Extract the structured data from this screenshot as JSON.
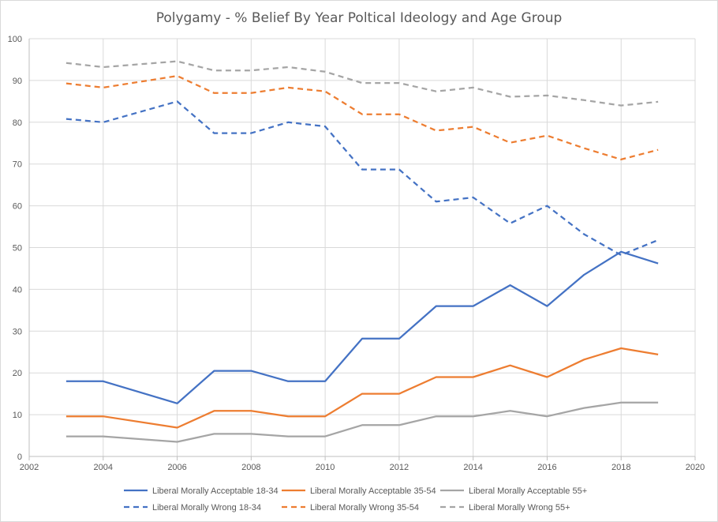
{
  "chart_data": {
    "type": "line",
    "title": "Polygamy - % Belief By Year Poltical Ideology and Age Group",
    "xlabel": "",
    "ylabel": "",
    "xlim": [
      2002,
      2020
    ],
    "ylim": [
      0,
      100
    ],
    "x_ticks": [
      2002,
      2004,
      2006,
      2008,
      2010,
      2012,
      2014,
      2016,
      2018,
      2020
    ],
    "y_ticks": [
      0,
      10,
      20,
      30,
      40,
      50,
      60,
      70,
      80,
      90,
      100
    ],
    "grid": true,
    "legend_position": "bottom",
    "x": [
      2003,
      2004,
      2006,
      2007,
      2008,
      2009,
      2010,
      2011,
      2012,
      2013,
      2014,
      2015,
      2016,
      2017,
      2018,
      2019
    ],
    "series": [
      {
        "name": "Liberal Morally Acceptable 18-34",
        "color": "#4472C4",
        "dash": "solid",
        "values": [
          18,
          18,
          12.7,
          20.5,
          20.5,
          18,
          18,
          28.2,
          28.2,
          36,
          36,
          41,
          36,
          43.5,
          49,
          46.2
        ]
      },
      {
        "name": "Liberal Morally Acceptable 35-54",
        "color": "#ED7D31",
        "dash": "solid",
        "values": [
          9.6,
          9.6,
          6.9,
          10.9,
          10.9,
          9.6,
          9.6,
          15,
          15,
          19,
          19,
          21.8,
          19,
          23.2,
          25.9,
          24.4
        ]
      },
      {
        "name": "Liberal Morally Acceptable 55+",
        "color": "#A5A5A5",
        "dash": "solid",
        "values": [
          4.8,
          4.8,
          3.5,
          5.4,
          5.4,
          4.8,
          4.8,
          7.5,
          7.5,
          9.6,
          9.6,
          10.9,
          9.6,
          11.6,
          12.9,
          12.9
        ]
      },
      {
        "name": "Liberal Morally Wrong 18-34",
        "color": "#4472C4",
        "dash": "dashed",
        "values": [
          80.8,
          80,
          85,
          77.4,
          77.4,
          80,
          79,
          68.7,
          68.7,
          61,
          62,
          55.8,
          60,
          53.2,
          48.2,
          51.8
        ]
      },
      {
        "name": "Liberal Morally Wrong 35-54",
        "color": "#ED7D31",
        "dash": "dashed",
        "values": [
          89.3,
          88.3,
          91.1,
          87,
          87,
          88.3,
          87.4,
          81.9,
          81.9,
          78,
          78.9,
          75.1,
          76.8,
          73.8,
          71.1,
          73.4
        ]
      },
      {
        "name": "Liberal Morally Wrong 55+",
        "color": "#A5A5A5",
        "dash": "dashed",
        "values": [
          94.2,
          93.2,
          94.6,
          92.4,
          92.4,
          93.2,
          92.1,
          89.4,
          89.4,
          87.4,
          88.3,
          86.1,
          86.4,
          85.3,
          84,
          84.9
        ]
      }
    ]
  }
}
